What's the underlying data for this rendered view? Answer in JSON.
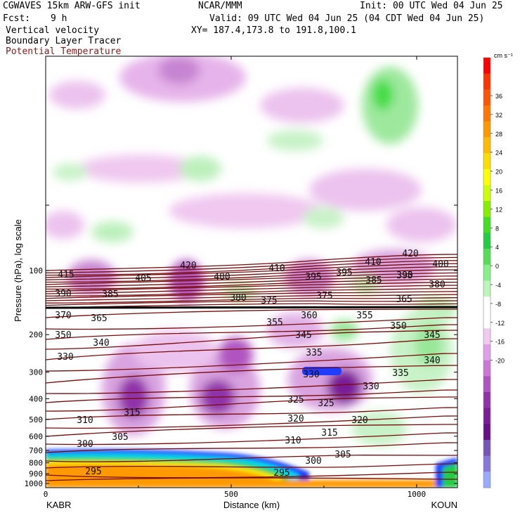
{
  "header": {
    "model": "CGWAVES 15km ARW-GFS init",
    "fcst_label": "Fcst:",
    "fcst_value": "9 h",
    "field1": "Vertical velocity",
    "field2": "Boundary Layer Tracer",
    "field3": "Potential Temperature",
    "center": "NCAR/MMM",
    "init": "Init: 00 UTC Wed 04 Jun 25",
    "valid": "Valid: 09 UTC Wed 04 Jun 25 (04 CDT Wed 04 Jun 25)",
    "xy": "XY= 187.4,173.8 to 191.8,100.1"
  },
  "colors": {
    "theta_contour": "#7a0a0a",
    "field3_text": "#8b1a1a",
    "tracer_orange": "#ff9900",
    "tracer_yellow": "#ffee00",
    "tracer_green": "#22cc44",
    "tracer_cyan": "#00ddee",
    "tracer_blue": "#1f3cff",
    "tropopause": "#000000"
  },
  "chart_data": {
    "type": "heatmap",
    "title": "Vertical velocity, Boundary Layer Tracer, Potential Temperature",
    "xlabel": "Distance (km)",
    "ylabel": "Pressure (hPa), log scale",
    "x_ticks": [
      0,
      500,
      1000
    ],
    "xlim": [
      0,
      1110
    ],
    "y_ticks": [
      100,
      200,
      300,
      400,
      500,
      600,
      700,
      800,
      900,
      1000
    ],
    "y_scale": "log",
    "left_endpoint": "KABR",
    "right_endpoint": "KOUN",
    "colorbar": {
      "unit": "cm s⁻¹",
      "tick_values": [
        "36",
        "32",
        "28",
        "24",
        "20",
        "16",
        "12",
        "8",
        "4",
        "0",
        "-4",
        "-8",
        "-12",
        "-16",
        "-20"
      ],
      "colors": [
        "#ff0000",
        "#ff3300",
        "#ff5500",
        "#ff7700",
        "#ff9900",
        "#ffbb00",
        "#ffdd00",
        "#ffff00",
        "#ccff00",
        "#88ee00",
        "#44dd22",
        "#22cc44",
        "#55dd55",
        "#88ee88",
        "#bbf5bb",
        "#ffffff",
        "#ffffff",
        "#f0c8f0",
        "#e0a0e8",
        "#cc77d4",
        "#b055c0",
        "#9033a8",
        "#7a1d98",
        "#661188",
        "#7755bb",
        "#8877dd",
        "#99aaff"
      ]
    },
    "theta_contours": [
      {
        "label": "420",
        "positions": [
          [
            268,
            382
          ],
          [
            584,
            365
          ]
        ]
      },
      {
        "label": "415",
        "positions": [
          [
            94,
            395
          ]
        ]
      },
      {
        "label": "410",
        "positions": [
          [
            394,
            386
          ],
          [
            531,
            377
          ]
        ]
      },
      {
        "label": "405",
        "positions": [
          [
            204,
            400
          ]
        ]
      },
      {
        "label": "400",
        "positions": [
          [
            316,
            398
          ],
          [
            627,
            380
          ]
        ]
      },
      {
        "label": "395",
        "positions": [
          [
            446,
            398
          ],
          [
            490,
            392
          ],
          [
            576,
            396
          ]
        ]
      },
      {
        "label": "390",
        "positions": [
          [
            90,
            422
          ],
          [
            576,
            396
          ]
        ]
      },
      {
        "label": "385",
        "positions": [
          [
            157,
            423
          ],
          [
            532,
            403
          ]
        ]
      },
      {
        "label": "380",
        "positions": [
          [
            339,
            428
          ],
          [
            622,
            409
          ]
        ]
      },
      {
        "label": "375",
        "positions": [
          [
            383,
            432
          ],
          [
            462,
            425
          ]
        ]
      },
      {
        "label": "370",
        "positions": [
          [
            90,
            453
          ]
        ]
      },
      {
        "label": "365",
        "positions": [
          [
            141,
            457
          ],
          [
            575,
            430
          ]
        ]
      },
      {
        "label": "360",
        "positions": [
          [
            440,
            453
          ]
        ]
      },
      {
        "label": "355",
        "positions": [
          [
            391,
            463
          ],
          [
            519,
            453
          ]
        ]
      },
      {
        "label": "350",
        "positions": [
          [
            90,
            481
          ],
          [
            567,
            468
          ]
        ]
      },
      {
        "label": "345",
        "positions": [
          [
            432,
            481
          ],
          [
            615,
            481
          ]
        ]
      },
      {
        "label": "340",
        "positions": [
          [
            144,
            492
          ],
          [
            615,
            517
          ]
        ]
      },
      {
        "label": "335",
        "positions": [
          [
            447,
            506
          ],
          [
            570,
            535
          ]
        ]
      },
      {
        "label": "330",
        "positions": [
          [
            93,
            512
          ],
          [
            443,
            537
          ],
          [
            528,
            554
          ]
        ]
      },
      {
        "label": "325",
        "positions": [
          [
            421,
            573
          ],
          [
            464,
            578
          ]
        ]
      },
      {
        "label": "320",
        "positions": [
          [
            421,
            600
          ],
          [
            512,
            602
          ]
        ]
      },
      {
        "label": "315",
        "positions": [
          [
            188,
            591
          ],
          [
            469,
            620
          ]
        ]
      },
      {
        "label": "310",
        "positions": [
          [
            121,
            602
          ],
          [
            417,
            631
          ]
        ]
      },
      {
        "label": "305",
        "positions": [
          [
            171,
            626
          ],
          [
            488,
            651
          ]
        ]
      },
      {
        "label": "300",
        "positions": [
          [
            121,
            636
          ],
          [
            446,
            660
          ]
        ]
      },
      {
        "label": "295",
        "positions": [
          [
            133,
            675
          ],
          [
            401,
            677
          ]
        ]
      }
    ],
    "boundary_layer_tracer": "high (orange) below ~700 hPa from 0 to ~650 km",
    "tropopause_level_hPa": 160
  }
}
